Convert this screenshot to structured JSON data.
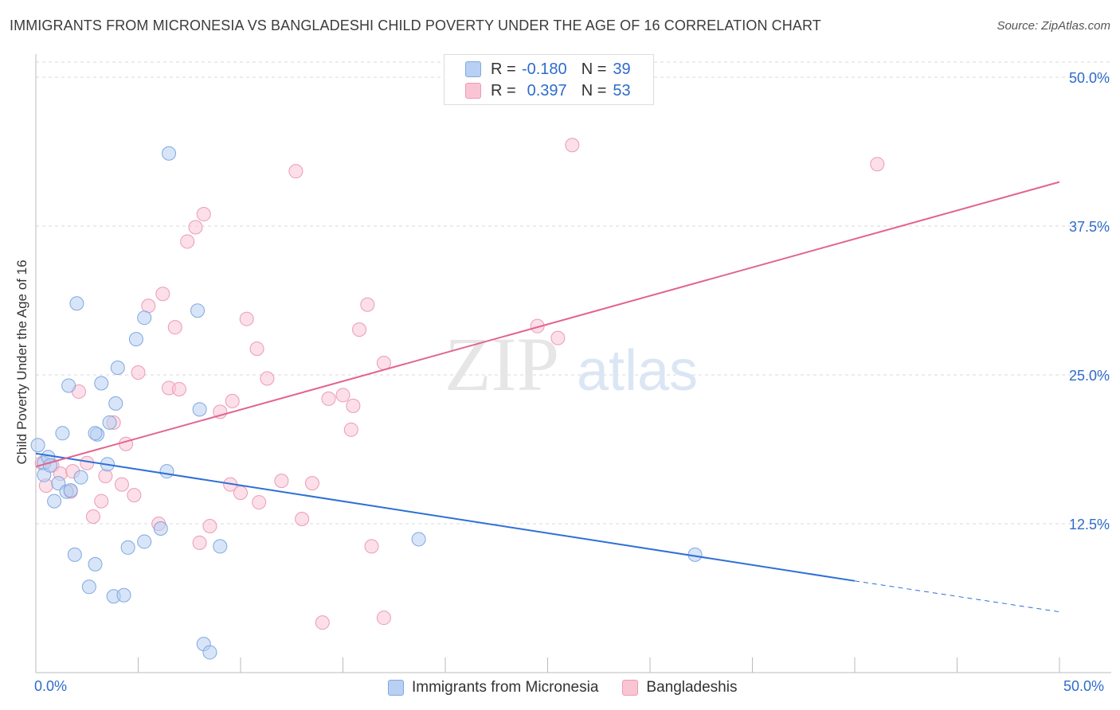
{
  "title": "IMMIGRANTS FROM MICRONESIA VS BANGLADESHI CHILD POVERTY UNDER THE AGE OF 16 CORRELATION CHART",
  "source": "Source: ZipAtlas.com",
  "watermark": {
    "zip": "ZIP",
    "atlas": "atlas"
  },
  "legend": {
    "r_label": "R =",
    "n_label": "N =",
    "rows": [
      {
        "name": "Immigrants from Micronesia",
        "r": "-0.180",
        "n": "39"
      },
      {
        "name": "Bangladeshis",
        "r": "0.397",
        "n": "53"
      }
    ]
  },
  "colors": {
    "blue_fill": "#b8d0f3",
    "blue_stroke": "#7fa8e0",
    "blue_line": "#2e6fd6",
    "pink_fill": "#f9c5d5",
    "pink_stroke": "#eb9bb6",
    "pink_line": "#e2648f",
    "axis_text": "#2e6cc9"
  },
  "chart_data": {
    "type": "scatter",
    "title": "IMMIGRANTS FROM MICRONESIA VS BANGLADESHI CHILD POVERTY UNDER THE AGE OF 16 CORRELATION CHART",
    "xlabel": "",
    "ylabel": "Child Poverty Under the Age of 16",
    "xlim": [
      0,
      50
    ],
    "ylim": [
      0,
      50
    ],
    "x_tick_labels": [
      "0.0%",
      "50.0%"
    ],
    "y_ticks": [
      12.5,
      25.0,
      37.5,
      50.0
    ],
    "y_tick_labels": [
      "12.5%",
      "25.0%",
      "37.5%",
      "50.0%"
    ],
    "grid": true,
    "series": [
      {
        "name": "Immigrants from Micronesia",
        "r": -0.18,
        "n": 39,
        "trend": {
          "x0": 0,
          "y0": 18.4,
          "x1": 40,
          "y1": 7.7,
          "dash_to_x": 50,
          "dash_y": 5.1
        },
        "points": [
          [
            0.1,
            19.1
          ],
          [
            0.4,
            17.6
          ],
          [
            0.6,
            18.1
          ],
          [
            0.4,
            16.6
          ],
          [
            0.7,
            17.4
          ],
          [
            1.1,
            15.9
          ],
          [
            1.3,
            20.1
          ],
          [
            1.5,
            15.2
          ],
          [
            1.7,
            15.3
          ],
          [
            0.9,
            14.4
          ],
          [
            2.0,
            31.0
          ],
          [
            1.6,
            24.1
          ],
          [
            3.2,
            24.3
          ],
          [
            3.0,
            20.0
          ],
          [
            3.5,
            17.5
          ],
          [
            2.2,
            16.4
          ],
          [
            3.6,
            21.0
          ],
          [
            3.9,
            22.6
          ],
          [
            4.0,
            25.6
          ],
          [
            4.9,
            28.0
          ],
          [
            5.3,
            29.8
          ],
          [
            6.5,
            43.6
          ],
          [
            7.9,
            30.4
          ],
          [
            8.0,
            22.1
          ],
          [
            2.9,
            20.1
          ],
          [
            6.4,
            16.9
          ],
          [
            6.1,
            12.1
          ],
          [
            5.3,
            11.0
          ],
          [
            4.5,
            10.5
          ],
          [
            9.0,
            10.6
          ],
          [
            1.9,
            9.9
          ],
          [
            2.9,
            9.1
          ],
          [
            2.6,
            7.2
          ],
          [
            3.8,
            6.4
          ],
          [
            4.3,
            6.5
          ],
          [
            8.2,
            2.4
          ],
          [
            8.5,
            1.7
          ],
          [
            18.7,
            11.2
          ],
          [
            32.2,
            9.9
          ]
        ]
      },
      {
        "name": "Bangladeshis",
        "r": 0.397,
        "n": 53,
        "trend": {
          "x0": 0,
          "y0": 17.3,
          "x1": 50,
          "y1": 41.2
        },
        "points": [
          [
            0.3,
            17.6
          ],
          [
            0.5,
            15.7
          ],
          [
            0.8,
            17.4
          ],
          [
            1.2,
            16.7
          ],
          [
            1.7,
            15.2
          ],
          [
            1.8,
            16.9
          ],
          [
            2.1,
            23.6
          ],
          [
            2.5,
            17.6
          ],
          [
            2.8,
            13.1
          ],
          [
            3.2,
            14.4
          ],
          [
            3.4,
            16.5
          ],
          [
            3.8,
            21.0
          ],
          [
            4.2,
            15.8
          ],
          [
            4.4,
            19.2
          ],
          [
            4.8,
            14.9
          ],
          [
            5.0,
            25.2
          ],
          [
            5.5,
            30.8
          ],
          [
            6.0,
            12.5
          ],
          [
            6.2,
            31.8
          ],
          [
            6.5,
            23.9
          ],
          [
            6.8,
            29.0
          ],
          [
            7.0,
            23.8
          ],
          [
            7.4,
            36.2
          ],
          [
            7.8,
            37.4
          ],
          [
            8.2,
            38.5
          ],
          [
            8.0,
            10.9
          ],
          [
            8.5,
            12.3
          ],
          [
            9.0,
            21.9
          ],
          [
            9.5,
            15.8
          ],
          [
            9.6,
            22.8
          ],
          [
            10.0,
            15.1
          ],
          [
            10.3,
            29.7
          ],
          [
            10.8,
            27.2
          ],
          [
            10.9,
            14.3
          ],
          [
            11.3,
            24.7
          ],
          [
            12.0,
            16.1
          ],
          [
            12.7,
            42.1
          ],
          [
            13.0,
            12.9
          ],
          [
            13.5,
            15.9
          ],
          [
            14.0,
            4.2
          ],
          [
            14.3,
            23.0
          ],
          [
            15.0,
            23.3
          ],
          [
            15.4,
            20.4
          ],
          [
            15.5,
            22.4
          ],
          [
            15.8,
            28.8
          ],
          [
            16.2,
            30.9
          ],
          [
            16.4,
            10.6
          ],
          [
            17.0,
            26.0
          ],
          [
            17.0,
            4.6
          ],
          [
            24.5,
            29.1
          ],
          [
            25.5,
            28.1
          ],
          [
            26.2,
            44.3
          ],
          [
            41.1,
            42.7
          ]
        ]
      }
    ]
  }
}
